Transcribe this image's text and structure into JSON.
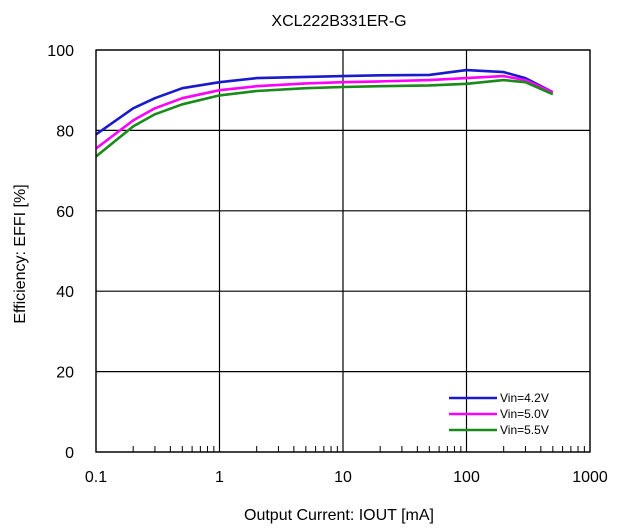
{
  "chart_data": {
    "type": "line",
    "title": "XCL222B331ER-G",
    "xlabel": "Output  Current: IOUT [mA]",
    "ylabel": "Efficiency: EFFI [%]",
    "x_scale": "log",
    "xlim": [
      0.1,
      1000
    ],
    "ylim": [
      0,
      100
    ],
    "x_tick_labels": [
      "0.1",
      "1",
      "10",
      "100",
      "1000"
    ],
    "x_ticks": [
      0.1,
      1,
      10,
      100,
      1000
    ],
    "y_tick_labels": [
      "0",
      "20",
      "40",
      "60",
      "80",
      "100"
    ],
    "y_ticks": [
      0,
      20,
      40,
      60,
      80,
      100
    ],
    "grid": true,
    "legend_position": "bottom-right",
    "series": [
      {
        "name": "Vin=4.2V",
        "color": "#1a1acc",
        "x": [
          0.1,
          0.2,
          0.3,
          0.5,
          1,
          2,
          5,
          10,
          20,
          50,
          100,
          200,
          300,
          500
        ],
        "y": [
          79,
          85.5,
          88,
          90.5,
          92,
          93,
          93.3,
          93.5,
          93.7,
          93.8,
          95,
          94.5,
          93,
          89.5
        ]
      },
      {
        "name": "Vin=5.0V",
        "color": "#ff00ff",
        "x": [
          0.1,
          0.2,
          0.3,
          0.5,
          1,
          2,
          5,
          10,
          20,
          50,
          100,
          200,
          300,
          500
        ],
        "y": [
          75.5,
          82.5,
          85.5,
          88,
          90,
          91,
          91.7,
          92,
          92.2,
          92.5,
          93,
          93.5,
          92.5,
          89.5
        ]
      },
      {
        "name": "Vin=5.5V",
        "color": "#1a8a1a",
        "x": [
          0.1,
          0.2,
          0.3,
          0.5,
          1,
          2,
          5,
          10,
          20,
          50,
          100,
          200,
          300,
          500
        ],
        "y": [
          73.5,
          81,
          84,
          86.5,
          88.7,
          89.8,
          90.5,
          90.8,
          91,
          91.2,
          91.6,
          92.5,
          92,
          89
        ]
      }
    ]
  }
}
